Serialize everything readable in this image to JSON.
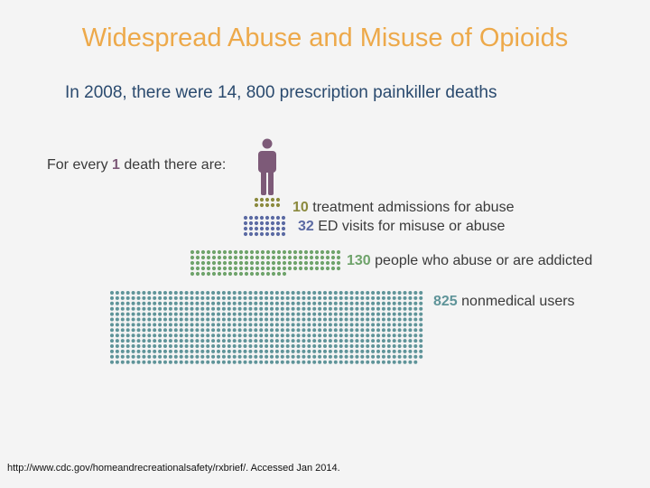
{
  "slide": {
    "title": "Widespread Abuse and Misuse of Opioids",
    "subtitle": "In 2008, there were 14, 800 prescription painkiller deaths",
    "source": "http://www.cdc.gov/homeandrecreationalsafety/rxbrief/. Accessed Jan 2014."
  },
  "chart_data": {
    "type": "pictograph",
    "title": "For every 1 death there are:",
    "lead": {
      "prefix": "For every",
      "number": "1",
      "suffix": "death there are:"
    },
    "icon": "person-icon",
    "series": [
      {
        "name": "treatment admissions for abuse",
        "value": 10,
        "color": "#8b8a3e"
      },
      {
        "name": "ED visits for misuse or abuse",
        "value": 32,
        "color": "#5b6aa3"
      },
      {
        "name": "people who abuse or are addicted",
        "value": 130,
        "color": "#6fa36b"
      },
      {
        "name": "nonmedical users",
        "value": 825,
        "color": "#5f9499"
      }
    ],
    "colors": {
      "death": "#7d5a78",
      "text": "#3a3a3a"
    }
  }
}
